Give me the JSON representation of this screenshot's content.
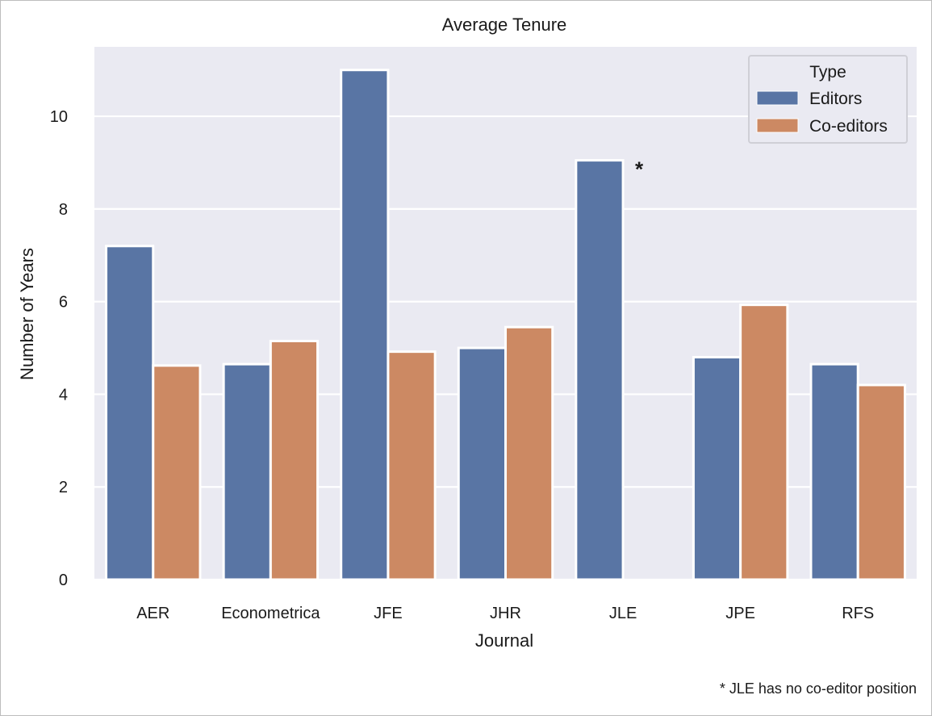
{
  "chart_data": {
    "type": "bar",
    "title": "Average Tenure",
    "xlabel": "Journal",
    "ylabel": "Number of Years",
    "categories": [
      "AER",
      "Econometrica",
      "JFE",
      "JHR",
      "JLE",
      "JPE",
      "RFS"
    ],
    "series": [
      {
        "name": "Editors",
        "color": "#5975a4",
        "values": [
          7.2,
          4.65,
          11.0,
          5.0,
          9.05,
          4.8,
          4.65
        ]
      },
      {
        "name": "Co-editors",
        "color": "#cc8963",
        "values": [
          4.62,
          5.15,
          4.92,
          5.45,
          0,
          5.93,
          4.2
        ]
      }
    ],
    "ylim": [
      0,
      11.5
    ],
    "yticks": [
      0,
      2,
      4,
      6,
      8,
      10
    ],
    "grid": true,
    "legend": {
      "title": "Type",
      "placement": "top-right"
    },
    "annotations": [
      {
        "text": "*",
        "category": "JLE",
        "value": 9.05
      }
    ],
    "footnote": "* JLE has no co-editor position"
  }
}
